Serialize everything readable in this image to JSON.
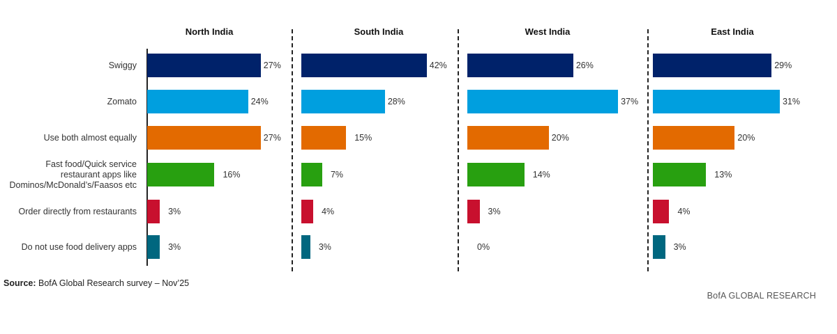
{
  "chart_data": {
    "type": "bar",
    "orientation": "horizontal",
    "title": "",
    "categories": [
      "Swiggy",
      "Zomato",
      "Use both almost equally",
      "Fast food/Quick service restaurant apps like Dominos/McDonald's/Faasos etc",
      "Order directly from restaurants",
      "Do not use food delivery apps"
    ],
    "category_lines": [
      [
        "Swiggy"
      ],
      [
        "Zomato"
      ],
      [
        "Use both almost equally"
      ],
      [
        "Fast food/Quick service",
        "restaurant apps like",
        "Dominos/McDonald’s/Faasos etc"
      ],
      [
        "Order directly from restaurants"
      ],
      [
        "Do not use food delivery apps"
      ]
    ],
    "colors": [
      "#00226a",
      "#009fdf",
      "#e36a00",
      "#28a010",
      "#c8102e",
      "#00677f"
    ],
    "unit": "%",
    "panels": [
      {
        "name": "North India",
        "values": [
          27,
          24,
          27,
          16,
          3,
          3
        ],
        "labels": [
          "27%",
          "24%",
          "27%",
          "16%",
          "3%",
          "3%"
        ]
      },
      {
        "name": "South India",
        "values": [
          42,
          28,
          15,
          7,
          4,
          3
        ],
        "labels": [
          "42%",
          "28%",
          "15%",
          "7%",
          "4%",
          "3%"
        ]
      },
      {
        "name": "West India",
        "values": [
          26,
          37,
          20,
          14,
          3,
          0
        ],
        "labels": [
          "26%",
          "37%",
          "20%",
          "14%",
          "3%",
          "0%"
        ]
      },
      {
        "name": "East India",
        "values": [
          29,
          31,
          20,
          13,
          4,
          3
        ],
        "labels": [
          "29%",
          "31%",
          "20%",
          "13%",
          "4%",
          "3%"
        ]
      }
    ],
    "xlabel": "",
    "ylabel": "",
    "grid": false,
    "legend": "none"
  },
  "footer": {
    "source_label": "Source:",
    "source_text": " BofA Global Research survey – Nov’25",
    "brand": "BofA GLOBAL RESEARCH"
  }
}
